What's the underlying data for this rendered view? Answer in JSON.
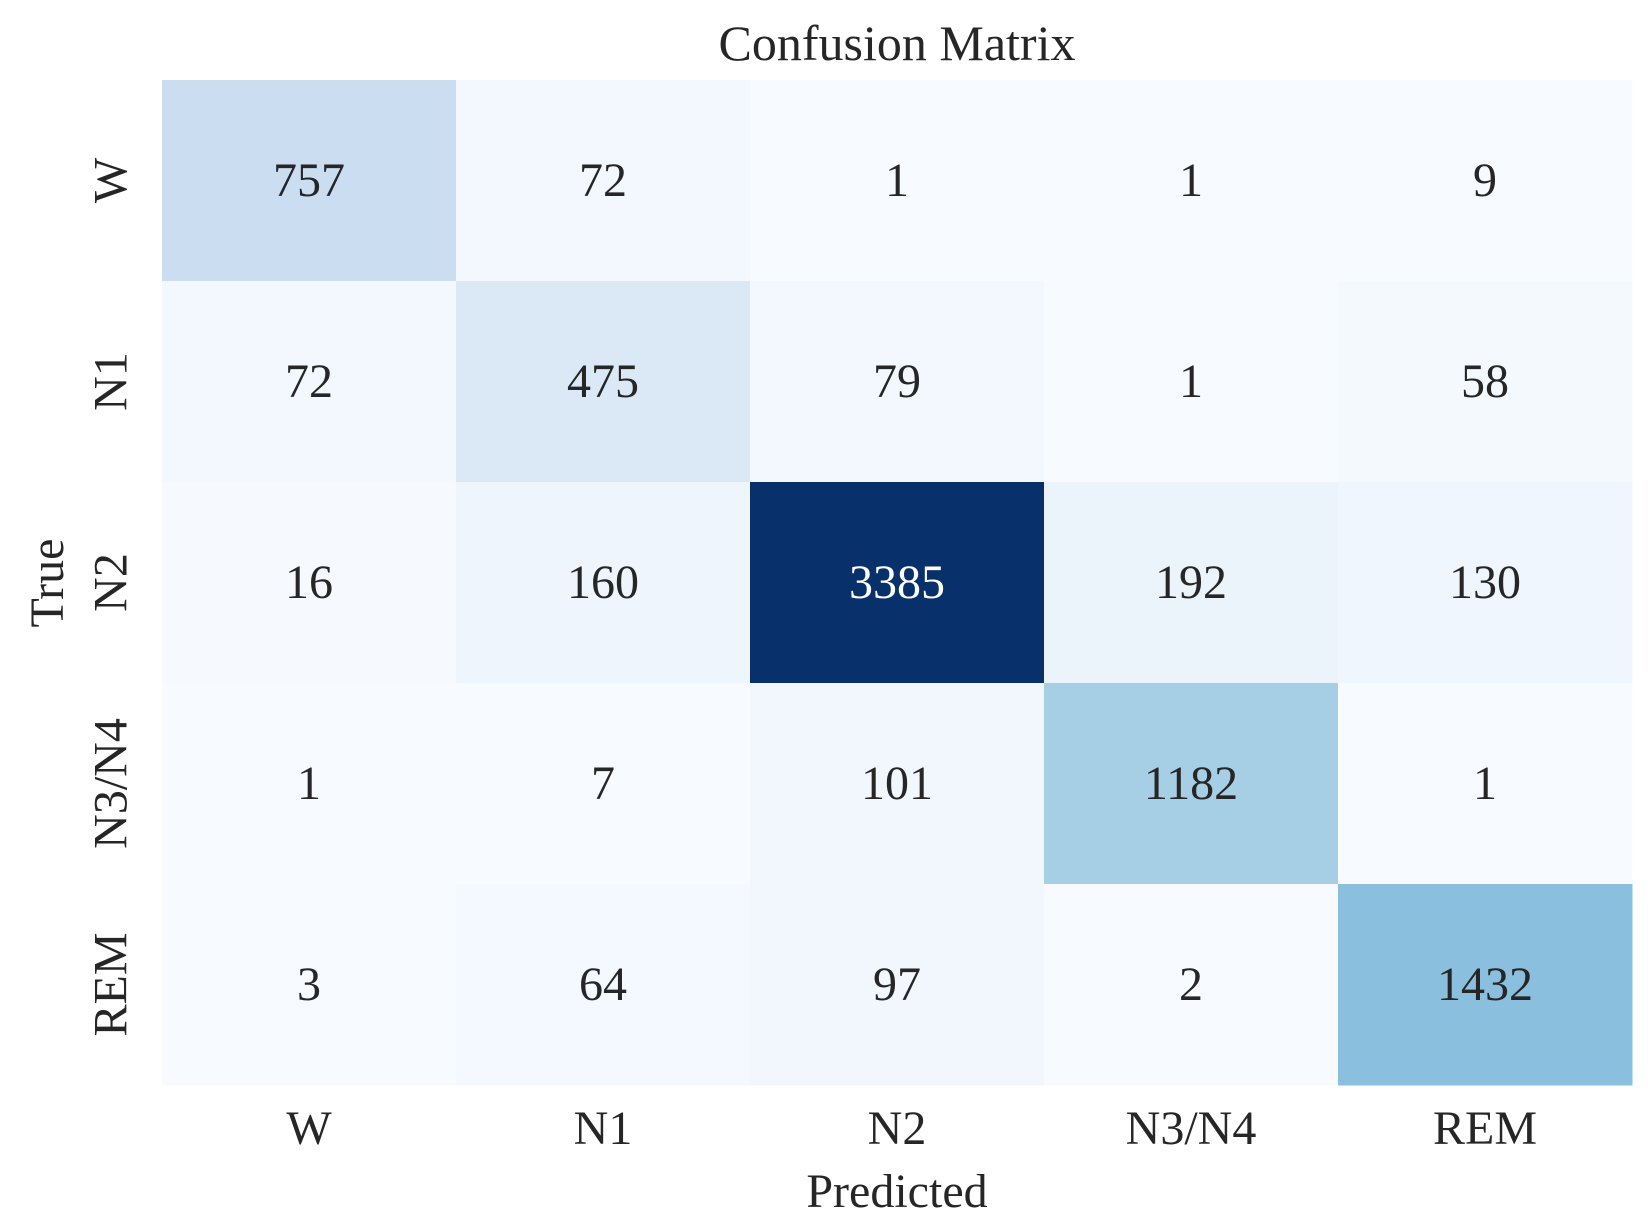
{
  "chart_data": {
    "type": "heatmap",
    "title": "Confusion Matrix",
    "xlabel": "Predicted",
    "ylabel": "True",
    "x_categories": [
      "W",
      "N1",
      "N2",
      "N3/N4",
      "REM"
    ],
    "y_categories": [
      "W",
      "N1",
      "N2",
      "N3/N4",
      "REM"
    ],
    "values": [
      [
        757,
        72,
        1,
        1,
        9
      ],
      [
        72,
        475,
        79,
        1,
        58
      ],
      [
        16,
        160,
        3385,
        192,
        130
      ],
      [
        1,
        7,
        101,
        1182,
        1
      ],
      [
        3,
        64,
        97,
        2,
        1432
      ]
    ],
    "colormap": "Blues",
    "color_low": "#f7fbff",
    "color_high": "#08306b",
    "colorbar": false,
    "grid": false
  }
}
